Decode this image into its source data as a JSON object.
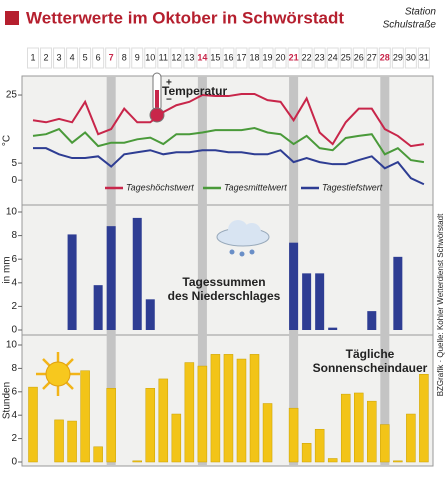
{
  "header": {
    "title": "Wetterwerte im Oktober in Schwörstadt",
    "station": [
      "Station",
      "Schulstraße"
    ],
    "credit": "BZGrafik · Quelle: Kohler Wetterdienst Schwörstadt"
  },
  "chart_data": [
    {
      "type": "line",
      "title": "Temperatur",
      "ylabel": "°C",
      "categories": [
        "1",
        "2",
        "3",
        "4",
        "5",
        "6",
        "7",
        "8",
        "9",
        "10",
        "11",
        "12",
        "13",
        "14",
        "15",
        "16",
        "17",
        "18",
        "19",
        "20",
        "21",
        "22",
        "23",
        "24",
        "25",
        "26",
        "27",
        "28",
        "29",
        "30",
        "31"
      ],
      "ylim": [
        -2,
        30
      ],
      "yticks": [
        0,
        5,
        25
      ],
      "series": [
        {
          "name": "Tageshöchstwert",
          "color": "#c8264a",
          "values": [
            17.6,
            17,
            18,
            17,
            23,
            13.5,
            15,
            21,
            17,
            17,
            20,
            22,
            23,
            25,
            24.7,
            24.7,
            25.3,
            25.3,
            23.5,
            23,
            17.6,
            24,
            14,
            10.6,
            17,
            21,
            21,
            15,
            13,
            10,
            10.6
          ]
        },
        {
          "name": "Tagesmittelwert",
          "color": "#4a9a3a",
          "values": [
            13,
            13.5,
            15,
            11,
            14,
            10,
            11,
            11,
            12,
            12.5,
            10.6,
            13.5,
            13.5,
            14,
            14.7,
            14.7,
            14.7,
            15.3,
            14,
            13.5,
            10.6,
            13,
            9.4,
            8.8,
            12.4,
            13,
            13.5,
            7.6,
            9.4,
            5.9,
            5.3
          ]
        },
        {
          "name": "Tagestiefstwert",
          "color": "#2e3d93",
          "values": [
            9.4,
            9.4,
            7.6,
            6.5,
            6.5,
            7,
            4,
            7.6,
            8.2,
            8.8,
            7.6,
            8.2,
            8.2,
            8.8,
            8.8,
            8.2,
            8.2,
            7.6,
            7.6,
            8.8,
            5.3,
            6.5,
            5.3,
            4.7,
            4.7,
            5.9,
            7,
            3.5,
            5.3,
            0.6,
            -1.2
          ]
        }
      ]
    },
    {
      "type": "bar",
      "title": "Tagessummen des Niederschlages",
      "ylabel": "in mm",
      "color": "#2e3d93",
      "categories": [
        "1",
        "2",
        "3",
        "4",
        "5",
        "6",
        "7",
        "8",
        "9",
        "10",
        "11",
        "12",
        "13",
        "14",
        "15",
        "16",
        "17",
        "18",
        "19",
        "20",
        "21",
        "22",
        "23",
        "24",
        "25",
        "26",
        "27",
        "28",
        "29",
        "30",
        "31"
      ],
      "ylim": [
        0,
        10
      ],
      "yticks": [
        0,
        2,
        4,
        6,
        8,
        10
      ],
      "values": [
        0,
        0,
        0,
        8.1,
        0,
        3.8,
        8.8,
        0,
        9.5,
        2.6,
        0,
        0,
        0,
        0,
        0,
        0,
        0,
        0,
        0,
        0,
        7.4,
        4.8,
        4.8,
        0.2,
        0,
        0,
        1.6,
        0,
        6.2,
        0,
        0
      ]
    },
    {
      "type": "bar",
      "title": "Tägliche Sonnenscheindauer",
      "ylabel": "Stunden",
      "color": "#f2c418",
      "categories": [
        "1",
        "2",
        "3",
        "4",
        "5",
        "6",
        "7",
        "8",
        "9",
        "10",
        "11",
        "12",
        "13",
        "14",
        "15",
        "16",
        "17",
        "18",
        "19",
        "20",
        "21",
        "22",
        "23",
        "24",
        "25",
        "26",
        "27",
        "28",
        "29",
        "30",
        "31"
      ],
      "ylim": [
        0,
        10
      ],
      "yticks": [
        0,
        2,
        4,
        6,
        8,
        10
      ],
      "values": [
        6.4,
        0,
        3.6,
        3.5,
        7.8,
        1.3,
        6.3,
        0,
        0.1,
        6.3,
        7.1,
        4.1,
        8.5,
        8.2,
        9.2,
        9.2,
        8.8,
        9.2,
        5.0,
        0,
        4.6,
        1.6,
        2.8,
        0.3,
        5.8,
        5.9,
        5.2,
        3.2,
        0.1,
        4.1,
        7.5
      ]
    }
  ]
}
